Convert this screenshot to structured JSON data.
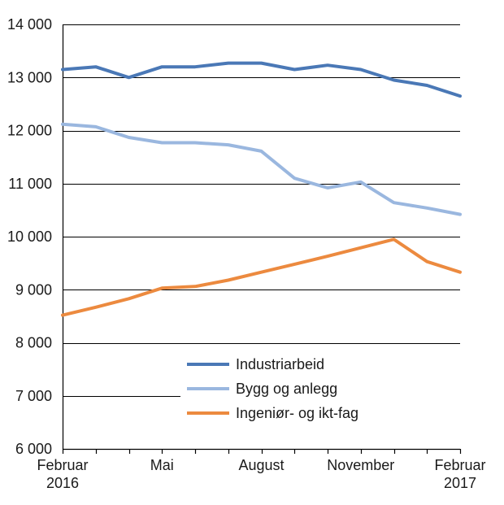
{
  "chart_data": {
    "type": "line",
    "title": "",
    "xlabel": "",
    "ylabel": "",
    "ylim": [
      6000,
      14000
    ],
    "yticks": [
      6000,
      7000,
      8000,
      9000,
      10000,
      11000,
      12000,
      13000,
      14000
    ],
    "ytick_labels": [
      "6 000",
      "7 000",
      "8 000",
      "9 000",
      "10 000",
      "11 000",
      "12 000",
      "13 000",
      "14 000"
    ],
    "x": [
      0,
      1,
      2,
      3,
      4,
      5,
      6,
      7,
      8,
      9,
      10,
      11,
      12
    ],
    "xtick_labels": [
      {
        "index": 0,
        "line1": "Februar",
        "line2": "2016"
      },
      {
        "index": 3,
        "line1": "Mai",
        "line2": ""
      },
      {
        "index": 6,
        "line1": "August",
        "line2": ""
      },
      {
        "index": 9,
        "line1": "November",
        "line2": ""
      },
      {
        "index": 12,
        "line1": "Februar",
        "line2": "2017"
      }
    ],
    "grid": true,
    "legend_position": "bottom-center",
    "series": [
      {
        "name": "Industriarbeid",
        "color": "#4a78b6",
        "values": [
          13150,
          13200,
          13000,
          13200,
          13200,
          13270,
          13270,
          13150,
          13230,
          13150,
          12950,
          12850,
          12650
        ]
      },
      {
        "name": "Bygg og anlegg",
        "color": "#9ab7df",
        "values": [
          12120,
          12070,
          11870,
          11770,
          11770,
          11730,
          11610,
          11100,
          10920,
          11030,
          10640,
          10540,
          10420
        ]
      },
      {
        "name": "Ingeniør- og ikt-fag",
        "color": "#ec8a3f",
        "values": [
          8520,
          8670,
          8830,
          9030,
          9060,
          9180,
          9330,
          9480,
          9630,
          9790,
          9950,
          9530,
          9330
        ]
      }
    ]
  }
}
